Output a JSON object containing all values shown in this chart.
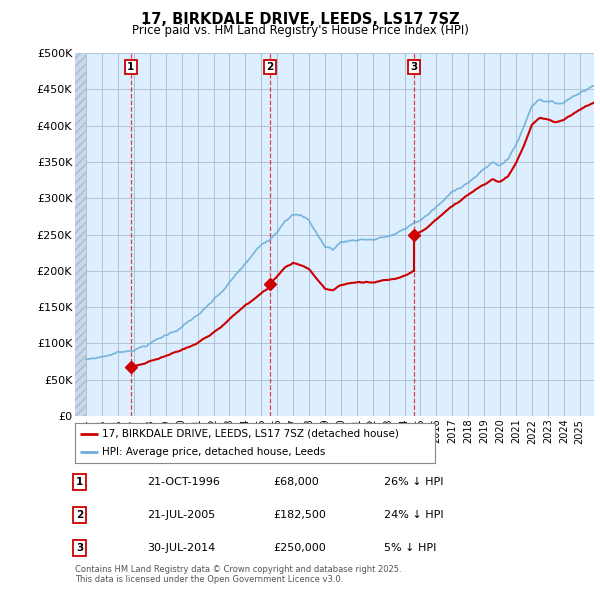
{
  "title": "17, BIRKDALE DRIVE, LEEDS, LS17 7SZ",
  "subtitle": "Price paid vs. HM Land Registry's House Price Index (HPI)",
  "legend_property": "17, BIRKDALE DRIVE, LEEDS, LS17 7SZ (detached house)",
  "legend_hpi": "HPI: Average price, detached house, Leeds",
  "footer": "Contains HM Land Registry data © Crown copyright and database right 2025.\nThis data is licensed under the Open Government Licence v3.0.",
  "transactions": [
    {
      "num": 1,
      "date": "21-OCT-1996",
      "price": 68000,
      "hpi_rel": "26% ↓ HPI",
      "year": 1996.8
    },
    {
      "num": 2,
      "date": "21-JUL-2005",
      "price": 182500,
      "hpi_rel": "24% ↓ HPI",
      "year": 2005.55
    },
    {
      "num": 3,
      "date": "30-JUL-2014",
      "price": 250000,
      "hpi_rel": "5% ↓ HPI",
      "year": 2014.58
    }
  ],
  "hpi_color": "#6baed6",
  "price_color": "#cc0000",
  "chart_bg": "#ddeeff",
  "background_color": "#ffffff",
  "grid_color": "#aabbcc",
  "ylim": [
    0,
    500000
  ],
  "yticks": [
    0,
    50000,
    100000,
    150000,
    200000,
    250000,
    300000,
    350000,
    400000,
    450000,
    500000
  ],
  "xlim_start": 1993.3,
  "xlim_end": 2025.9,
  "hpi_anchors_t": [
    1993.5,
    1994.0,
    1995.0,
    1996.0,
    1996.8,
    1997.5,
    1998.5,
    1999.5,
    2000.5,
    2001.5,
    2002.5,
    2003.5,
    2004.5,
    2005.0,
    2005.55,
    2006.0,
    2006.5,
    2007.0,
    2007.5,
    2008.0,
    2008.5,
    2009.0,
    2009.5,
    2010.0,
    2010.5,
    2011.0,
    2011.5,
    2012.0,
    2012.5,
    2013.0,
    2013.5,
    2014.0,
    2014.58,
    2015.0,
    2015.5,
    2016.0,
    2016.5,
    2017.0,
    2017.5,
    2018.0,
    2018.5,
    2019.0,
    2019.5,
    2020.0,
    2020.5,
    2021.0,
    2021.5,
    2022.0,
    2022.5,
    2023.0,
    2023.5,
    2024.0,
    2024.5,
    2025.0,
    2025.9
  ],
  "hpi_anchors_v": [
    75000,
    78000,
    82000,
    88000,
    91900,
    97000,
    107000,
    118000,
    132000,
    148000,
    168000,
    193000,
    218000,
    230000,
    240100,
    252000,
    270000,
    278000,
    275000,
    268000,
    250000,
    232000,
    228000,
    238000,
    240000,
    242000,
    243000,
    243000,
    245000,
    247000,
    250000,
    255000,
    263200,
    268000,
    276000,
    285000,
    294000,
    304000,
    312000,
    320000,
    328000,
    336000,
    345000,
    342000,
    350000,
    370000,
    395000,
    425000,
    435000,
    432000,
    428000,
    430000,
    438000,
    445000,
    455000
  ]
}
